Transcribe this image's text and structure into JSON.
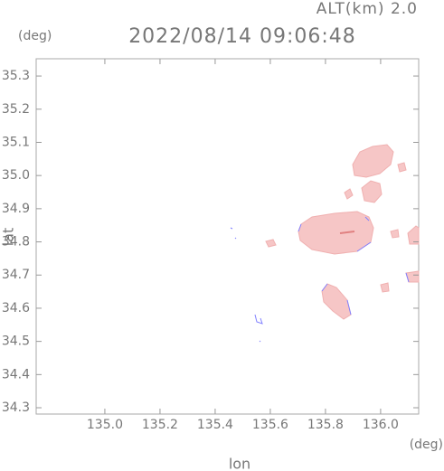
{
  "chart_data": {
    "type": "map",
    "title": "2022/08/14 09:06:48",
    "subtitle": "ALT(km) 2.0",
    "x_label": "lon",
    "y_label": "lat",
    "x_unit": "(deg)",
    "y_unit": "(deg)",
    "xlim": [
      134.751,
      136.138
    ],
    "ylim": [
      34.281,
      35.352
    ],
    "xticks": [
      {
        "value": 135,
        "label": "135.0"
      },
      {
        "value": 135.2,
        "label": "135.2"
      },
      {
        "value": 135.4,
        "label": "135.4"
      },
      {
        "value": 135.6,
        "label": "135.6"
      },
      {
        "value": 135.8,
        "label": "135.8"
      },
      {
        "value": 136,
        "label": "136.0"
      }
    ],
    "yticks": [
      {
        "value": 34.3,
        "label": "34.3"
      },
      {
        "value": 34.4,
        "label": "34.4"
      },
      {
        "value": 34.5,
        "label": "34.5"
      },
      {
        "value": 34.6,
        "label": "34.6"
      },
      {
        "value": 34.7,
        "label": "34.7"
      },
      {
        "value": 34.8,
        "label": "34.8"
      },
      {
        "value": 34.9,
        "label": "34.9"
      },
      {
        "value": 35,
        "label": "35.0"
      },
      {
        "value": 35.1,
        "label": "35.1"
      },
      {
        "value": 35.2,
        "label": "35.2"
      },
      {
        "value": 35.3,
        "label": "35.3"
      }
    ]
  }
}
